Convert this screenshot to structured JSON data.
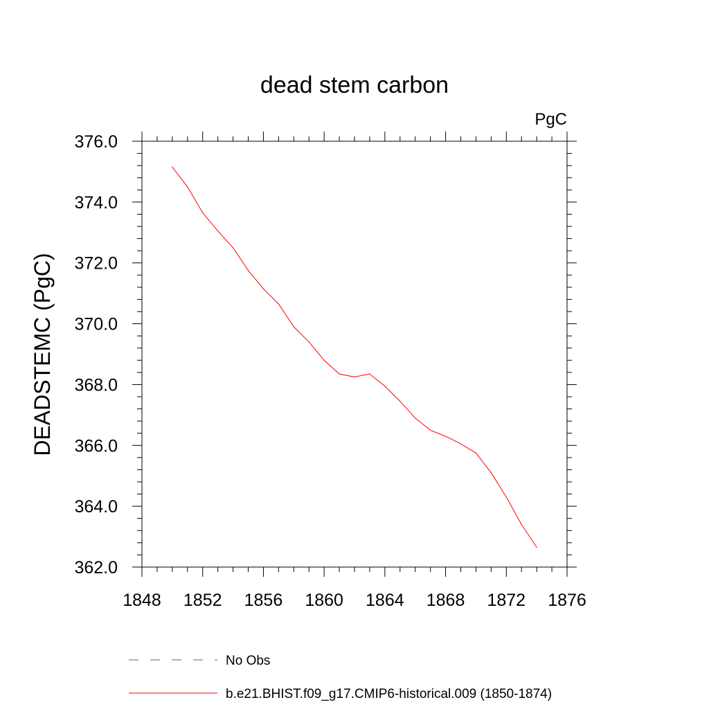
{
  "chart_data": {
    "type": "line",
    "title": "dead stem carbon",
    "units_label": "PgC",
    "xlabel": "",
    "ylabel": "DEADSTEMC  (PgC)",
    "xlim": [
      1848,
      1876
    ],
    "ylim": [
      362.0,
      376.0
    ],
    "x_ticks": [
      1848,
      1852,
      1856,
      1860,
      1864,
      1868,
      1872,
      1876
    ],
    "x_tick_labels": [
      "1848",
      "1852",
      "1856",
      "1860",
      "1864",
      "1868",
      "1872",
      "1876"
    ],
    "y_ticks": [
      362,
      364,
      366,
      368,
      370,
      372,
      374,
      376
    ],
    "y_tick_labels": [
      "362.0",
      "364.0",
      "366.0",
      "368.0",
      "370.0",
      "372.0",
      "374.0",
      "376.0"
    ],
    "grid": false,
    "legend_position": "bottom",
    "series": [
      {
        "name": "No Obs",
        "color": "#5a5ab4",
        "style": "dashed",
        "x": [],
        "values": []
      },
      {
        "name": "b.e21.BHIST.f09_g17.CMIP6-historical.009 (1850-1874)",
        "color": "#ff0000",
        "style": "solid",
        "x": [
          1850,
          1851,
          1852,
          1853,
          1854,
          1855,
          1856,
          1857,
          1858,
          1859,
          1860,
          1861,
          1862,
          1863,
          1864,
          1865,
          1866,
          1867,
          1868,
          1869,
          1870,
          1871,
          1872,
          1873,
          1874
        ],
        "values": [
          375.15,
          374.5,
          373.65,
          373.05,
          372.5,
          371.75,
          371.15,
          370.65,
          369.9,
          369.4,
          368.8,
          368.35,
          368.25,
          368.35,
          367.95,
          367.45,
          366.9,
          366.5,
          366.3,
          366.05,
          365.75,
          365.1,
          364.3,
          363.4,
          362.65
        ]
      }
    ]
  }
}
